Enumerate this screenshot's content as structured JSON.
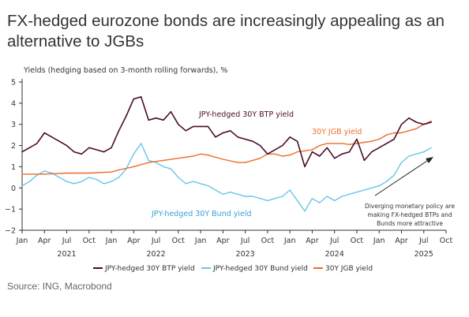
{
  "title": "FX-hedged eurozone bonds are increasingly appealing as an alternative to JGBs",
  "source": "Source: ING, Macrobond",
  "colors": {
    "btp": "#4a0d2b",
    "bund": "#66c6ea",
    "jgb": "#ec6d2a",
    "axis": "#333333",
    "text": "#333333"
  },
  "chart_data": {
    "type": "line",
    "ylabel": "Yields (hedging based on 3-month rolling forwards), %",
    "ylim": [
      -2,
      5
    ],
    "yticks": [
      -2,
      -1,
      0,
      1,
      2,
      3,
      4,
      5
    ],
    "xlim": [
      "2021-01-01",
      "2025-10-01"
    ],
    "xticks": [
      "Jan",
      "Apr",
      "Jul",
      "Oct",
      "Jan",
      "Apr",
      "Jul",
      "Oct",
      "Jan",
      "Apr",
      "Jul",
      "Oct",
      "Jan",
      "Apr",
      "Jul",
      "Oct",
      "Jan",
      "Apr",
      "Jul",
      "Oct"
    ],
    "years": [
      "2021",
      "2022",
      "2023",
      "2024",
      "2025"
    ],
    "annotations": {
      "btp": "JPY-hedged 30Y BTP yield",
      "jgb": "30Y JGB yield",
      "bund": "JPY-hedged 30Y Bund yield",
      "note": [
        "Diverging monetary policy are",
        "making FX-hedged BTPs and",
        "Bunds more attractive"
      ]
    },
    "series": [
      {
        "name": "JPY-hedged 30Y BTP yield",
        "key": "btp",
        "x": [
          "2021-01-01",
          "2021-02-01",
          "2021-03-01",
          "2021-04-01",
          "2021-05-01",
          "2021-06-01",
          "2021-07-01",
          "2021-08-01",
          "2021-09-01",
          "2021-10-01",
          "2021-11-01",
          "2021-12-01",
          "2022-01-01",
          "2022-02-01",
          "2022-03-01",
          "2022-04-01",
          "2022-05-01",
          "2022-06-01",
          "2022-07-01",
          "2022-08-01",
          "2022-09-01",
          "2022-10-01",
          "2022-11-01",
          "2022-12-01",
          "2023-01-01",
          "2023-02-01",
          "2023-03-01",
          "2023-04-01",
          "2023-05-01",
          "2023-06-01",
          "2023-07-01",
          "2023-08-01",
          "2023-09-01",
          "2023-10-01",
          "2023-11-01",
          "2023-12-01",
          "2024-01-01",
          "2024-02-01",
          "2024-03-01",
          "2024-04-01",
          "2024-05-01",
          "2024-06-01",
          "2024-07-01",
          "2024-08-01",
          "2024-09-01",
          "2024-10-01",
          "2024-11-01",
          "2024-12-01",
          "2025-01-01",
          "2025-02-01",
          "2025-03-01",
          "2025-04-01",
          "2025-05-01",
          "2025-06-01",
          "2025-07-01",
          "2025-08-01"
        ],
        "y": [
          1.7,
          1.9,
          2.1,
          2.6,
          2.4,
          2.2,
          2.0,
          1.7,
          1.6,
          1.9,
          1.8,
          1.7,
          1.9,
          2.7,
          3.4,
          4.2,
          4.3,
          3.2,
          3.3,
          3.2,
          3.6,
          3.0,
          2.7,
          2.9,
          2.9,
          2.9,
          2.4,
          2.6,
          2.7,
          2.4,
          2.3,
          2.2,
          2.0,
          1.6,
          1.8,
          2.0,
          2.4,
          2.2,
          1.0,
          1.7,
          1.5,
          1.9,
          1.4,
          1.6,
          1.7,
          2.3,
          1.3,
          1.7,
          1.9,
          2.1,
          2.3,
          3.0,
          3.3,
          3.1,
          3.0,
          3.1
        ]
      },
      {
        "name": "JPY-hedged 30Y Bund yield",
        "key": "bund",
        "x": [
          "2021-01-01",
          "2021-02-01",
          "2021-03-01",
          "2021-04-01",
          "2021-05-01",
          "2021-06-01",
          "2021-07-01",
          "2021-08-01",
          "2021-09-01",
          "2021-10-01",
          "2021-11-01",
          "2021-12-01",
          "2022-01-01",
          "2022-02-01",
          "2022-03-01",
          "2022-04-01",
          "2022-05-01",
          "2022-06-01",
          "2022-07-01",
          "2022-08-01",
          "2022-09-01",
          "2022-10-01",
          "2022-11-01",
          "2022-12-01",
          "2023-01-01",
          "2023-02-01",
          "2023-03-01",
          "2023-04-01",
          "2023-05-01",
          "2023-06-01",
          "2023-07-01",
          "2023-08-01",
          "2023-09-01",
          "2023-10-01",
          "2023-11-01",
          "2023-12-01",
          "2024-01-01",
          "2024-02-01",
          "2024-03-01",
          "2024-04-01",
          "2024-05-01",
          "2024-06-01",
          "2024-07-01",
          "2024-08-01",
          "2024-09-01",
          "2024-10-01",
          "2024-11-01",
          "2024-12-01",
          "2025-01-01",
          "2025-02-01",
          "2025-03-01",
          "2025-04-01",
          "2025-05-01",
          "2025-06-01",
          "2025-07-01",
          "2025-08-01"
        ],
        "y": [
          0.1,
          0.3,
          0.6,
          0.8,
          0.7,
          0.5,
          0.3,
          0.2,
          0.3,
          0.5,
          0.4,
          0.2,
          0.3,
          0.5,
          0.9,
          1.6,
          2.1,
          1.3,
          1.2,
          1.0,
          0.9,
          0.5,
          0.2,
          0.3,
          0.2,
          0.1,
          -0.1,
          -0.3,
          -0.2,
          -0.3,
          -0.4,
          -0.4,
          -0.5,
          -0.6,
          -0.5,
          -0.4,
          -0.1,
          -0.6,
          -1.1,
          -0.5,
          -0.7,
          -0.4,
          -0.6,
          -0.4,
          -0.3,
          -0.2,
          -0.1,
          0.0,
          0.1,
          0.3,
          0.6,
          1.2,
          1.5,
          1.6,
          1.7,
          1.9
        ]
      },
      {
        "name": "30Y JGB yield",
        "key": "jgb",
        "x": [
          "2021-01-01",
          "2021-04-01",
          "2021-07-01",
          "2021-10-01",
          "2022-01-01",
          "2022-02-01",
          "2022-04-01",
          "2022-06-01",
          "2022-08-01",
          "2022-10-01",
          "2022-12-01",
          "2023-01-01",
          "2023-02-01",
          "2023-04-01",
          "2023-06-01",
          "2023-07-01",
          "2023-08-01",
          "2023-09-01",
          "2023-10-01",
          "2023-11-01",
          "2023-12-01",
          "2024-01-01",
          "2024-02-01",
          "2024-03-01",
          "2024-04-01",
          "2024-05-01",
          "2024-06-01",
          "2024-07-01",
          "2024-08-01",
          "2024-09-01",
          "2024-10-01",
          "2024-11-01",
          "2024-12-01",
          "2025-01-01",
          "2025-02-01",
          "2025-03-01",
          "2025-04-01",
          "2025-05-01",
          "2025-06-01",
          "2025-07-01",
          "2025-08-01"
        ],
        "y": [
          0.65,
          0.65,
          0.7,
          0.7,
          0.75,
          0.85,
          1.0,
          1.2,
          1.3,
          1.4,
          1.5,
          1.6,
          1.55,
          1.35,
          1.2,
          1.2,
          1.3,
          1.4,
          1.6,
          1.6,
          1.5,
          1.55,
          1.7,
          1.75,
          1.8,
          2.0,
          2.1,
          2.1,
          2.1,
          2.05,
          2.1,
          2.15,
          2.2,
          2.3,
          2.5,
          2.6,
          2.6,
          2.7,
          2.8,
          3.0,
          3.15
        ]
      }
    ]
  }
}
